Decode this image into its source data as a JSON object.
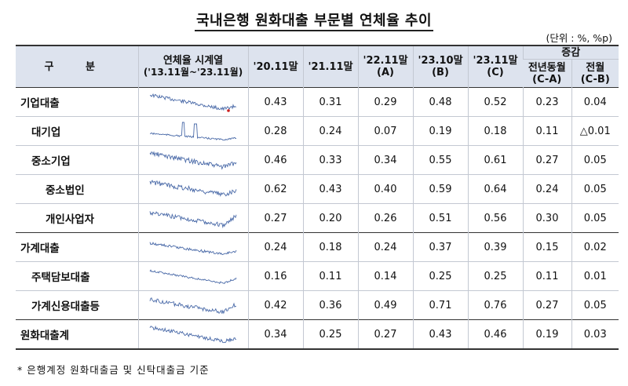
{
  "title": "국내은행 원화대출 부문별 연체율 추이",
  "unit": "(단위 : %, %p)",
  "headers": {
    "category": "구 분",
    "timeseries": "연체율 시계열",
    "timeseries_range": "('13.11월~'23.11월)",
    "cols": [
      "'20.11말",
      "'21.11말",
      "'22.11말",
      "'23.10말",
      "'23.11말"
    ],
    "col_tags": [
      "",
      "",
      "(A)",
      "(B)",
      "(C)"
    ],
    "increase": "증감",
    "yoy": "전년동월",
    "yoy_tag": "(C-A)",
    "mom": "전월",
    "mom_tag": "(C-B)"
  },
  "rows": [
    {
      "label": "기업대출",
      "values": [
        "0.43",
        "0.31",
        "0.29",
        "0.48",
        "0.52",
        "0.23",
        "0.04"
      ]
    },
    {
      "label": "대기업",
      "values": [
        "0.28",
        "0.24",
        "0.07",
        "0.19",
        "0.18",
        "0.11",
        "△0.01"
      ]
    },
    {
      "label": "중소기업",
      "values": [
        "0.46",
        "0.33",
        "0.34",
        "0.55",
        "0.61",
        "0.27",
        "0.05"
      ]
    },
    {
      "label": "중소법인",
      "values": [
        "0.62",
        "0.43",
        "0.40",
        "0.59",
        "0.64",
        "0.24",
        "0.05"
      ]
    },
    {
      "label": "개인사업자",
      "values": [
        "0.27",
        "0.20",
        "0.26",
        "0.51",
        "0.56",
        "0.30",
        "0.05"
      ]
    },
    {
      "label": "가계대출",
      "values": [
        "0.24",
        "0.18",
        "0.24",
        "0.37",
        "0.39",
        "0.15",
        "0.02"
      ]
    },
    {
      "label": "주택담보대출",
      "values": [
        "0.16",
        "0.11",
        "0.14",
        "0.25",
        "0.25",
        "0.11",
        "0.01"
      ]
    },
    {
      "label": "가계신용대출등",
      "values": [
        "0.42",
        "0.36",
        "0.49",
        "0.71",
        "0.76",
        "0.27",
        "0.05"
      ]
    },
    {
      "label": "원화대출계",
      "values": [
        "0.34",
        "0.25",
        "0.27",
        "0.43",
        "0.46",
        "0.19",
        "0.03"
      ]
    }
  ],
  "footnote": "* 은행계정 원화대출금 및 신탁대출금 기준",
  "colors": {
    "header_bg": "#dde3ee",
    "spark": "#4a6aa8",
    "marker": "#cc1f1f"
  }
}
